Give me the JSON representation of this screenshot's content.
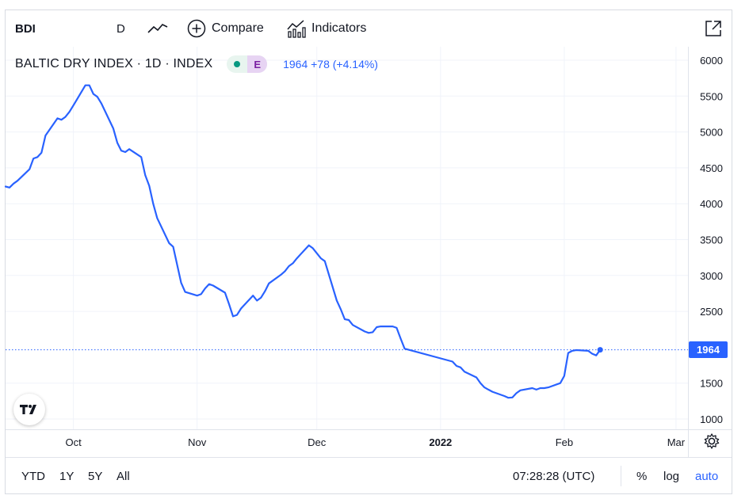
{
  "toolbar": {
    "symbol": "BDI",
    "interval": "D",
    "chart_style_icon": "line-chart-icon",
    "compare_label": "Compare",
    "compare_icon": "plus-circle-icon",
    "indicators_label": "Indicators",
    "indicators_icon": "indicators-icon",
    "fullscreen_icon": "fullscreen-icon"
  },
  "legend": {
    "title": "BALTIC DRY INDEX · 1D · INDEX",
    "status_icon": "market-status-dot-icon",
    "earnings_badge": "E",
    "last_value": "1964 +78 (+4.14%)"
  },
  "price_label": "1964",
  "logo_text": "TV",
  "bottom": {
    "ranges": [
      "YTD",
      "1Y",
      "5Y",
      "All"
    ],
    "time": "07:28:28 (UTC)",
    "percent": "%",
    "log": "log",
    "auto": "auto",
    "settings_icon": "gear-icon"
  },
  "colors": {
    "line": "#2962ff",
    "grid": "#f0f3fa",
    "text": "#131722",
    "accent": "#2962ff"
  },
  "chart_data": {
    "type": "line",
    "title": "BALTIC DRY INDEX · 1D · INDEX",
    "xlabel": "",
    "ylabel": "",
    "ylim": [
      900,
      6150
    ],
    "x_ticks": [
      {
        "label": "Oct",
        "date": "2021-10-01",
        "bold": false
      },
      {
        "label": "Nov",
        "date": "2021-11-01",
        "bold": false
      },
      {
        "label": "Dec",
        "date": "2021-12-01",
        "bold": false
      },
      {
        "label": "2022",
        "date": "2022-01-01",
        "bold": true
      },
      {
        "label": "Feb",
        "date": "2022-02-01",
        "bold": false
      },
      {
        "label": "Mar",
        "date": "2022-03-01",
        "bold": false
      }
    ],
    "y_ticks": [
      1000,
      1500,
      2500,
      3000,
      3500,
      4000,
      4500,
      5000,
      5500,
      6000
    ],
    "last_price": 1964,
    "grid": true,
    "series": [
      {
        "points": [
          [
            "2021-09-14",
            4240
          ],
          [
            "2021-09-15",
            4225
          ],
          [
            "2021-09-16",
            4280
          ],
          [
            "2021-09-17",
            4320
          ],
          [
            "2021-09-20",
            4480
          ],
          [
            "2021-09-21",
            4630
          ],
          [
            "2021-09-22",
            4650
          ],
          [
            "2021-09-23",
            4710
          ],
          [
            "2021-09-24",
            4950
          ],
          [
            "2021-09-27",
            5190
          ],
          [
            "2021-09-28",
            5170
          ],
          [
            "2021-09-29",
            5210
          ],
          [
            "2021-09-30",
            5280
          ],
          [
            "2021-10-01",
            5370
          ],
          [
            "2021-10-04",
            5650
          ],
          [
            "2021-10-05",
            5650
          ],
          [
            "2021-10-06",
            5530
          ],
          [
            "2021-10-07",
            5490
          ],
          [
            "2021-10-08",
            5400
          ],
          [
            "2021-10-11",
            5050
          ],
          [
            "2021-10-12",
            4850
          ],
          [
            "2021-10-13",
            4740
          ],
          [
            "2021-10-14",
            4720
          ],
          [
            "2021-10-15",
            4760
          ],
          [
            "2021-10-18",
            4650
          ],
          [
            "2021-10-19",
            4400
          ],
          [
            "2021-10-20",
            4250
          ],
          [
            "2021-10-21",
            4000
          ],
          [
            "2021-10-22",
            3800
          ],
          [
            "2021-10-25",
            3450
          ],
          [
            "2021-10-26",
            3400
          ],
          [
            "2021-10-27",
            3150
          ],
          [
            "2021-10-28",
            2900
          ],
          [
            "2021-10-29",
            2770
          ],
          [
            "2021-11-01",
            2720
          ],
          [
            "2021-11-02",
            2740
          ],
          [
            "2021-11-03",
            2820
          ],
          [
            "2021-11-04",
            2880
          ],
          [
            "2021-11-05",
            2860
          ],
          [
            "2021-11-08",
            2760
          ],
          [
            "2021-11-09",
            2600
          ],
          [
            "2021-11-10",
            2430
          ],
          [
            "2021-11-11",
            2450
          ],
          [
            "2021-11-12",
            2540
          ],
          [
            "2021-11-15",
            2720
          ],
          [
            "2021-11-16",
            2650
          ],
          [
            "2021-11-17",
            2690
          ],
          [
            "2021-11-18",
            2780
          ],
          [
            "2021-11-19",
            2890
          ],
          [
            "2021-11-22",
            3010
          ],
          [
            "2021-11-23",
            3060
          ],
          [
            "2021-11-24",
            3130
          ],
          [
            "2021-11-25",
            3170
          ],
          [
            "2021-11-26",
            3240
          ],
          [
            "2021-11-29",
            3420
          ],
          [
            "2021-11-30",
            3380
          ],
          [
            "2021-12-01",
            3310
          ],
          [
            "2021-12-02",
            3240
          ],
          [
            "2021-12-03",
            3200
          ],
          [
            "2021-12-06",
            2650
          ],
          [
            "2021-12-07",
            2530
          ],
          [
            "2021-12-08",
            2390
          ],
          [
            "2021-12-09",
            2380
          ],
          [
            "2021-12-10",
            2310
          ],
          [
            "2021-12-13",
            2220
          ],
          [
            "2021-12-14",
            2200
          ],
          [
            "2021-12-15",
            2210
          ],
          [
            "2021-12-16",
            2280
          ],
          [
            "2021-12-17",
            2290
          ],
          [
            "2021-12-20",
            2290
          ],
          [
            "2021-12-21",
            2270
          ],
          [
            "2021-12-22",
            2120
          ],
          [
            "2021-12-23",
            1980
          ],
          [
            "2022-01-04",
            1800
          ],
          [
            "2022-01-05",
            1740
          ],
          [
            "2022-01-06",
            1720
          ],
          [
            "2022-01-07",
            1660
          ],
          [
            "2022-01-10",
            1580
          ],
          [
            "2022-01-11",
            1500
          ],
          [
            "2022-01-12",
            1440
          ],
          [
            "2022-01-13",
            1410
          ],
          [
            "2022-01-14",
            1380
          ],
          [
            "2022-01-17",
            1320
          ],
          [
            "2022-01-18",
            1296
          ],
          [
            "2022-01-19",
            1300
          ],
          [
            "2022-01-20",
            1360
          ],
          [
            "2022-01-21",
            1400
          ],
          [
            "2022-01-24",
            1430
          ],
          [
            "2022-01-25",
            1410
          ],
          [
            "2022-01-26",
            1430
          ],
          [
            "2022-01-27",
            1430
          ],
          [
            "2022-01-28",
            1440
          ],
          [
            "2022-01-31",
            1500
          ],
          [
            "2022-02-01",
            1600
          ],
          [
            "2022-02-02",
            1920
          ],
          [
            "2022-02-03",
            1950
          ],
          [
            "2022-02-04",
            1960
          ],
          [
            "2022-02-07",
            1950
          ],
          [
            "2022-02-08",
            1910
          ],
          [
            "2022-02-09",
            1886
          ],
          [
            "2022-02-10",
            1964
          ]
        ]
      }
    ]
  }
}
